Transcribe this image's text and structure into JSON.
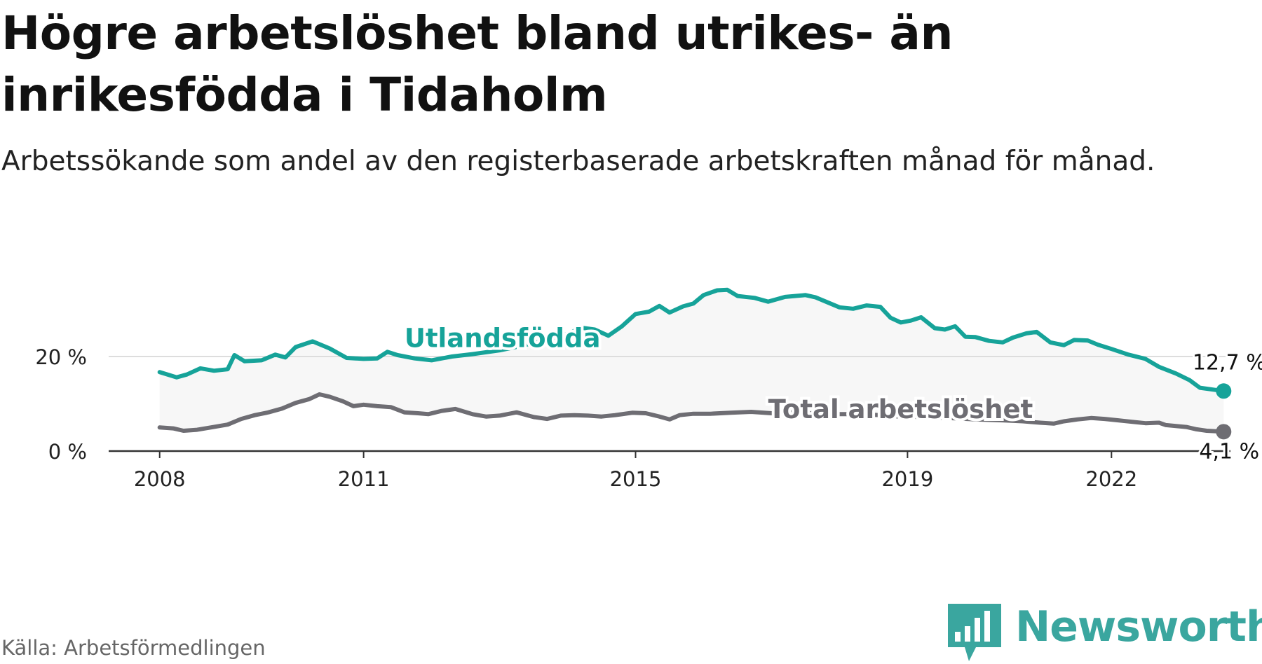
{
  "title": "Högre arbetslöshet bland utrikes- än inrikesfödda i Tidaholm",
  "subtitle": "Arbetssökande som andel av den registerbaserade arbetskraften månad för månad.",
  "source": "Källa: Arbetsförmedlingen",
  "logo_text": "Newsworthy",
  "colors": {
    "foreign": "#16a399",
    "total": "#6e6d73",
    "band": "#f7f7f7",
    "axis": "#333333",
    "grid": "#dddddd"
  },
  "chart_data": {
    "type": "line",
    "title": "Högre arbetslöshet bland utrikes- än inrikesfödda i Tidaholm",
    "ylim": [
      0,
      35
    ],
    "xlim": [
      2007.25,
      2023.75
    ],
    "yticks": [
      {
        "value": 0,
        "label": "0 %"
      },
      {
        "value": 20,
        "label": "20 %"
      }
    ],
    "xticks": [
      {
        "value": 2008,
        "label": "2008"
      },
      {
        "value": 2011,
        "label": "2011"
      },
      {
        "value": 2015,
        "label": "2015"
      },
      {
        "value": 2019,
        "label": "2019"
      },
      {
        "value": 2022,
        "label": "2022"
      }
    ],
    "series": [
      {
        "name": "Utlandsfödda",
        "color": "#16a399",
        "end_label": "12,7 %",
        "points": [
          [
            2008.0,
            16.7
          ],
          [
            2008.25,
            15.6
          ],
          [
            2008.4,
            16.2
          ],
          [
            2008.6,
            17.5
          ],
          [
            2008.8,
            17.0
          ],
          [
            2009.0,
            17.3
          ],
          [
            2009.1,
            20.3
          ],
          [
            2009.25,
            19.0
          ],
          [
            2009.5,
            19.2
          ],
          [
            2009.7,
            20.4
          ],
          [
            2009.85,
            19.8
          ],
          [
            2010.0,
            22.0
          ],
          [
            2010.25,
            23.2
          ],
          [
            2010.5,
            21.7
          ],
          [
            2010.75,
            19.7
          ],
          [
            2011.0,
            19.5
          ],
          [
            2011.2,
            19.6
          ],
          [
            2011.35,
            21.0
          ],
          [
            2011.5,
            20.3
          ],
          [
            2011.75,
            19.6
          ],
          [
            2012.0,
            19.2
          ],
          [
            2012.3,
            20.0
          ],
          [
            2012.6,
            20.5
          ],
          [
            2013.0,
            21.3
          ],
          [
            2013.3,
            22.2
          ],
          [
            2013.6,
            23.2
          ],
          [
            2014.0,
            24.8
          ],
          [
            2014.2,
            26.1
          ],
          [
            2014.4,
            25.7
          ],
          [
            2014.6,
            24.4
          ],
          [
            2014.8,
            26.4
          ],
          [
            2015.0,
            29.0
          ],
          [
            2015.2,
            29.5
          ],
          [
            2015.35,
            30.7
          ],
          [
            2015.5,
            29.3
          ],
          [
            2015.7,
            30.6
          ],
          [
            2015.85,
            31.2
          ],
          [
            2016.0,
            33.0
          ],
          [
            2016.2,
            34.0
          ],
          [
            2016.35,
            34.1
          ],
          [
            2016.5,
            32.8
          ],
          [
            2016.75,
            32.4
          ],
          [
            2016.95,
            31.6
          ],
          [
            2017.2,
            32.6
          ],
          [
            2017.5,
            33.0
          ],
          [
            2017.65,
            32.5
          ],
          [
            2017.8,
            31.6
          ],
          [
            2018.0,
            30.4
          ],
          [
            2018.2,
            30.1
          ],
          [
            2018.4,
            30.8
          ],
          [
            2018.6,
            30.5
          ],
          [
            2018.75,
            28.2
          ],
          [
            2018.9,
            27.2
          ],
          [
            2019.05,
            27.6
          ],
          [
            2019.2,
            28.3
          ],
          [
            2019.4,
            26.0
          ],
          [
            2019.55,
            25.7
          ],
          [
            2019.7,
            26.4
          ],
          [
            2019.85,
            24.2
          ],
          [
            2020.0,
            24.1
          ],
          [
            2020.2,
            23.3
          ],
          [
            2020.4,
            23.0
          ],
          [
            2020.55,
            24.0
          ],
          [
            2020.75,
            24.9
          ],
          [
            2020.9,
            25.2
          ],
          [
            2021.1,
            23.0
          ],
          [
            2021.3,
            22.4
          ],
          [
            2021.45,
            23.5
          ],
          [
            2021.65,
            23.4
          ],
          [
            2021.8,
            22.5
          ],
          [
            2022.0,
            21.6
          ],
          [
            2022.25,
            20.4
          ],
          [
            2022.5,
            19.5
          ],
          [
            2022.7,
            17.8
          ],
          [
            2022.95,
            16.4
          ],
          [
            2023.15,
            15.0
          ],
          [
            2023.3,
            13.4
          ],
          [
            2023.5,
            13.0
          ],
          [
            2023.65,
            12.7
          ]
        ]
      },
      {
        "name": "Total arbetslöshet",
        "color": "#6e6d73",
        "end_label": "4,1 %",
        "points": [
          [
            2008.0,
            5.0
          ],
          [
            2008.2,
            4.8
          ],
          [
            2008.35,
            4.3
          ],
          [
            2008.55,
            4.5
          ],
          [
            2008.75,
            5.0
          ],
          [
            2009.0,
            5.6
          ],
          [
            2009.2,
            6.8
          ],
          [
            2009.4,
            7.6
          ],
          [
            2009.6,
            8.2
          ],
          [
            2009.8,
            9.0
          ],
          [
            2010.0,
            10.2
          ],
          [
            2010.2,
            11.0
          ],
          [
            2010.35,
            12.0
          ],
          [
            2010.5,
            11.5
          ],
          [
            2010.7,
            10.5
          ],
          [
            2010.85,
            9.5
          ],
          [
            2011.0,
            9.8
          ],
          [
            2011.2,
            9.5
          ],
          [
            2011.4,
            9.3
          ],
          [
            2011.6,
            8.2
          ],
          [
            2011.8,
            8.0
          ],
          [
            2011.95,
            7.8
          ],
          [
            2012.15,
            8.5
          ],
          [
            2012.35,
            8.9
          ],
          [
            2012.6,
            7.8
          ],
          [
            2012.8,
            7.3
          ],
          [
            2013.0,
            7.5
          ],
          [
            2013.25,
            8.2
          ],
          [
            2013.5,
            7.2
          ],
          [
            2013.7,
            6.8
          ],
          [
            2013.9,
            7.5
          ],
          [
            2014.1,
            7.6
          ],
          [
            2014.3,
            7.5
          ],
          [
            2014.5,
            7.3
          ],
          [
            2014.7,
            7.6
          ],
          [
            2014.95,
            8.1
          ],
          [
            2015.15,
            8.0
          ],
          [
            2015.35,
            7.3
          ],
          [
            2015.5,
            6.7
          ],
          [
            2015.65,
            7.6
          ],
          [
            2015.85,
            7.9
          ],
          [
            2016.1,
            7.9
          ],
          [
            2016.4,
            8.1
          ],
          [
            2016.7,
            8.3
          ],
          [
            2017.0,
            8.0
          ],
          [
            2017.3,
            8.2
          ],
          [
            2017.6,
            8.0
          ],
          [
            2018.0,
            7.8
          ],
          [
            2018.3,
            7.8
          ],
          [
            2018.6,
            7.6
          ],
          [
            2018.9,
            7.3
          ],
          [
            2019.2,
            7.2
          ],
          [
            2019.6,
            7.0
          ],
          [
            2020.0,
            6.7
          ],
          [
            2020.4,
            6.5
          ],
          [
            2020.7,
            6.3
          ],
          [
            2020.95,
            6.0
          ],
          [
            2021.15,
            5.8
          ],
          [
            2021.3,
            6.3
          ],
          [
            2021.5,
            6.7
          ],
          [
            2021.7,
            7.0
          ],
          [
            2021.9,
            6.8
          ],
          [
            2022.1,
            6.5
          ],
          [
            2022.3,
            6.2
          ],
          [
            2022.5,
            5.9
          ],
          [
            2022.7,
            6.0
          ],
          [
            2022.8,
            5.5
          ],
          [
            2022.95,
            5.3
          ],
          [
            2023.1,
            5.1
          ],
          [
            2023.25,
            4.6
          ],
          [
            2023.4,
            4.3
          ],
          [
            2023.55,
            4.2
          ],
          [
            2023.65,
            4.1
          ]
        ]
      }
    ],
    "series_labels": [
      {
        "series": 0,
        "text": "Utlandsfödda",
        "x": 2011.6,
        "y": 22.0
      },
      {
        "series": 1,
        "text": "Total arbetslöshet",
        "x": 2016.95,
        "y": 7.0
      }
    ]
  }
}
